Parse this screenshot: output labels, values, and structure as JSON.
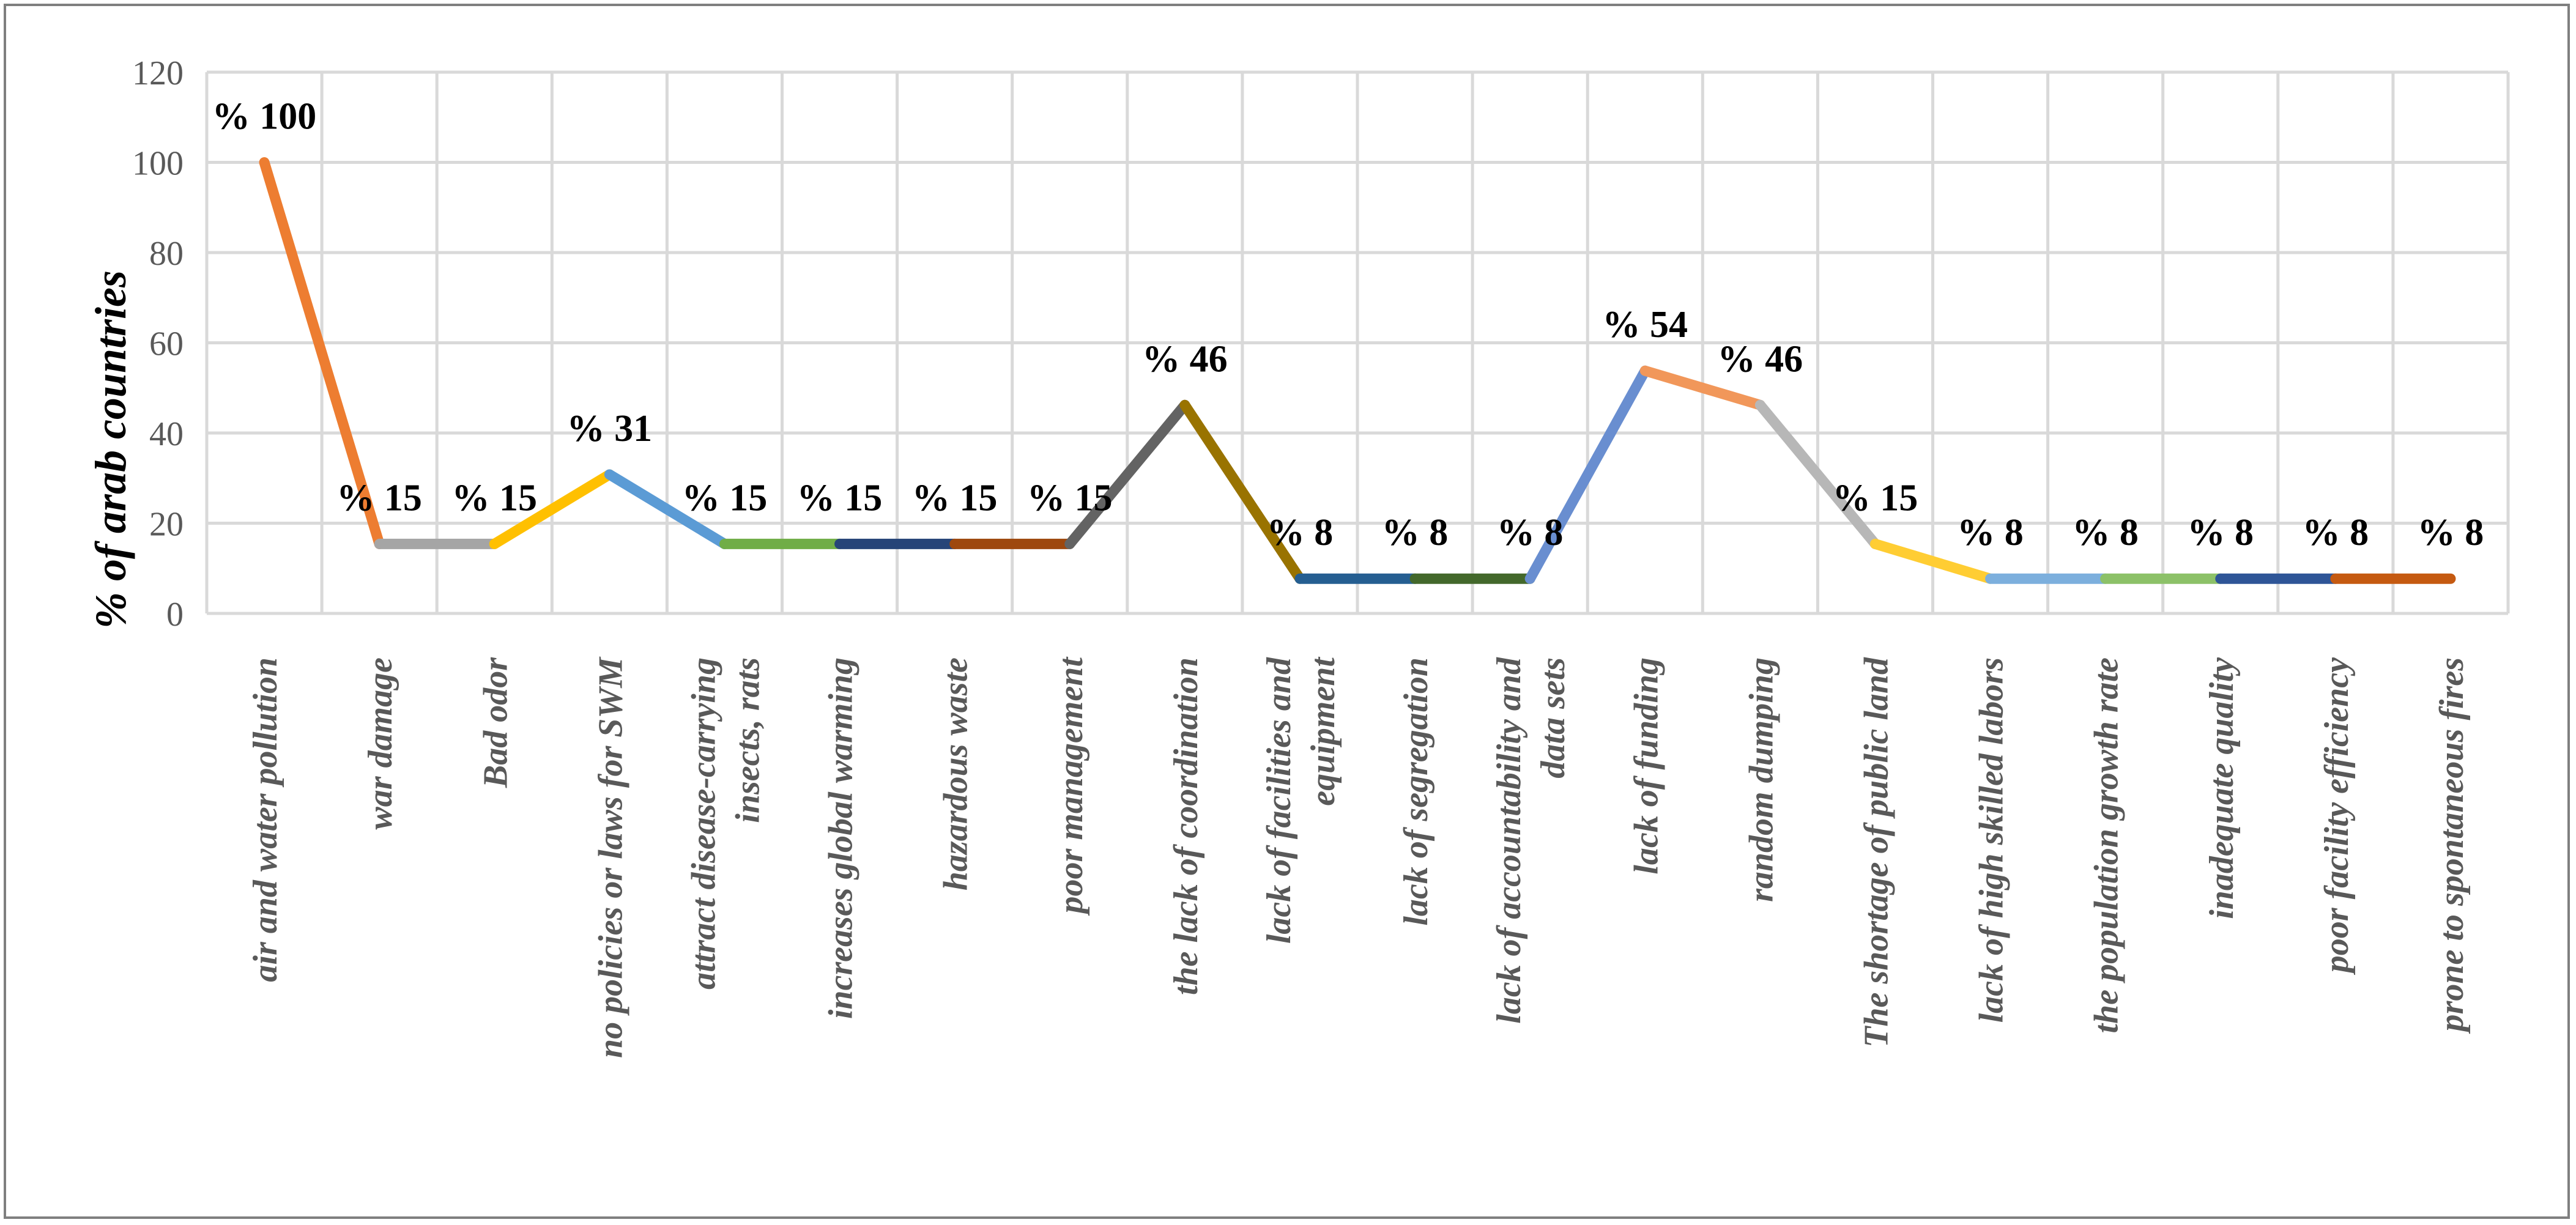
{
  "chart_data": {
    "type": "line",
    "title": "",
    "xlabel": "",
    "ylabel": "% of arab countries",
    "ylim": [
      0,
      120
    ],
    "yticks": [
      0,
      20,
      40,
      60,
      80,
      100,
      120
    ],
    "grid": true,
    "legend": "none",
    "categories": [
      [
        "air and water pollution"
      ],
      [
        "war damage"
      ],
      [
        "Bad odor"
      ],
      [
        "no policies or laws for SWM"
      ],
      [
        "attract disease-carrying",
        "insects,  rats"
      ],
      [
        "increases global warming"
      ],
      [
        "hazardous waste"
      ],
      [
        "poor management"
      ],
      [
        "the lack of coordination"
      ],
      [
        "lack of facilities and",
        "equipment"
      ],
      [
        "lack of segregation"
      ],
      [
        "lack of accountability and",
        "data sets"
      ],
      [
        "lack of funding"
      ],
      [
        "random dumping"
      ],
      [
        "The shortage of public land"
      ],
      [
        "lack of high skilled labors"
      ],
      [
        "the population growth rate"
      ],
      [
        "inadequate quality"
      ],
      [
        "poor facility efficiency"
      ],
      [
        "prone to spontaneous fires"
      ]
    ],
    "values": [
      100,
      15.4,
      15.4,
      30.8,
      15.4,
      15.4,
      15.4,
      15.4,
      46.2,
      7.7,
      7.7,
      7.7,
      53.8,
      46.2,
      15.4,
      7.7,
      7.7,
      7.7,
      7.7,
      7.7
    ],
    "data_labels": [
      "% 100",
      "% 15",
      "% 15",
      "% 31",
      "% 15",
      "% 15",
      "% 15",
      "% 15",
      "% 46",
      "% 8",
      "% 8",
      "% 8",
      "% 54",
      "% 46",
      "% 15",
      "% 8",
      "% 8",
      "% 8",
      "% 8",
      "% 8"
    ],
    "segment_colors": [
      "#ED7D31",
      "#A5A5A5",
      "#FFC000",
      "#5B9BD5",
      "#70AD47",
      "#264478",
      "#9E480E",
      "#636363",
      "#997300",
      "#255E91",
      "#43682B",
      "#698ED0",
      "#F1975A",
      "#B7B7B7",
      "#FFCD33",
      "#7CAFDD",
      "#8CC168",
      "#2E5597",
      "#C55A11"
    ],
    "gridline_color": "#d9d9d9"
  }
}
